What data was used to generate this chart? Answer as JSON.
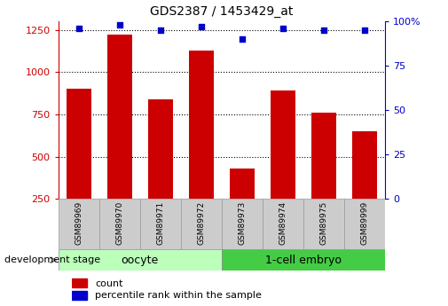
{
  "title": "GDS2387 / 1453429_at",
  "categories": [
    "GSM89969",
    "GSM89970",
    "GSM89971",
    "GSM89972",
    "GSM89973",
    "GSM89974",
    "GSM89975",
    "GSM89999"
  ],
  "counts": [
    900,
    1220,
    840,
    1130,
    430,
    890,
    760,
    650
  ],
  "percentiles": [
    96,
    98,
    95,
    97,
    90,
    96,
    95,
    95
  ],
  "bar_color": "#CC0000",
  "dot_color": "#0000CC",
  "ylim_left": [
    250,
    1300
  ],
  "yticks_left": [
    250,
    500,
    750,
    1000,
    1250
  ],
  "ylim_right": [
    0,
    100
  ],
  "yticks_right": [
    0,
    25,
    50,
    75,
    100
  ],
  "group1_label": "oocyte",
  "group2_label": "1-cell embryo",
  "group1_color": "#BBFFBB",
  "group2_color": "#44CC44",
  "xlabel_group": "development stage",
  "tick_label_color_left": "#CC0000",
  "tick_label_color_right": "#0000CC",
  "xticklabel_bg": "#CCCCCC",
  "bar_width": 0.6,
  "legend_items": [
    "count",
    "percentile rank within the sample"
  ],
  "percentile_scale_factor": 13.0
}
